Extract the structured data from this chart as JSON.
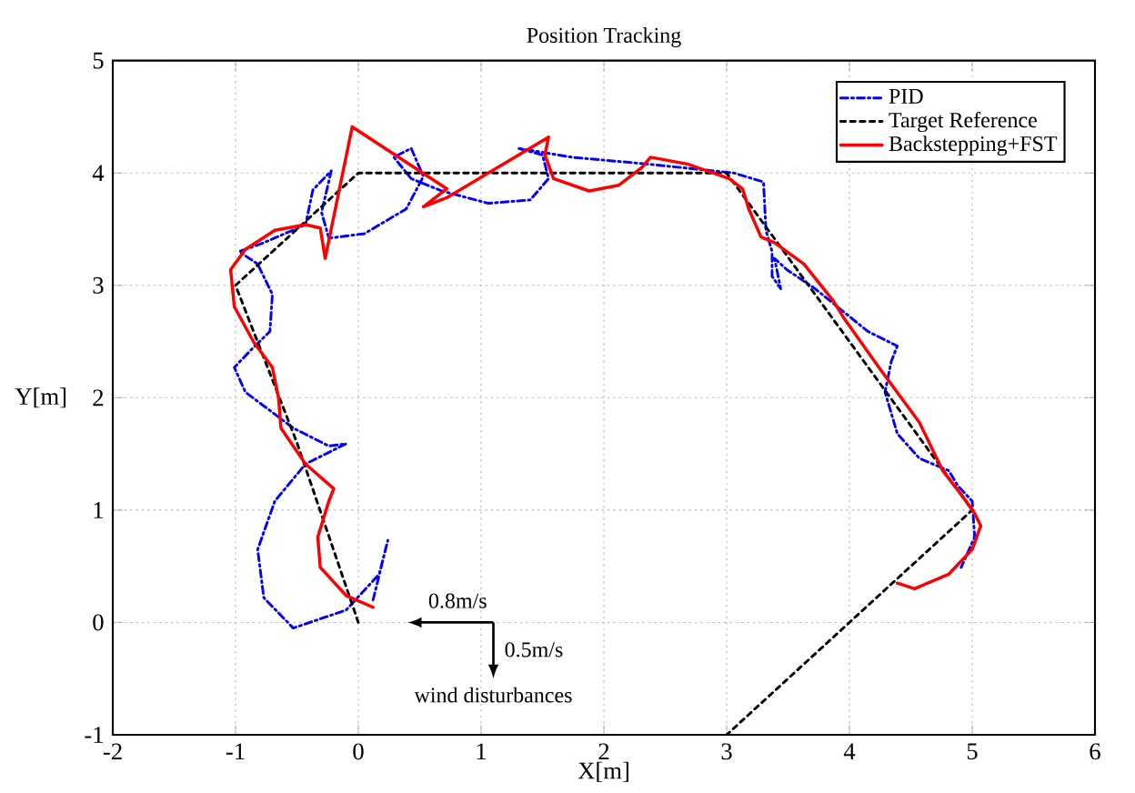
{
  "chart_data": {
    "type": "line",
    "title": "Position Tracking",
    "xlabel": "X[m]",
    "ylabel": "Y[m]",
    "xlim": [
      -2,
      6
    ],
    "ylim": [
      -1,
      5
    ],
    "xticks": [
      -2,
      -1,
      0,
      1,
      2,
      3,
      4,
      5,
      6
    ],
    "yticks": [
      -1,
      0,
      1,
      2,
      3,
      4,
      5
    ],
    "grid": true,
    "legend": "top right",
    "marker": "none",
    "annotations": [
      "0.8m/s",
      "0.5m/s",
      "wind disturbances"
    ],
    "series": [
      {
        "name": "PID",
        "color": "#0000ff",
        "line_style": "dashdot",
        "x": [
          0.12,
          0.24,
          0.17,
          -0.1,
          -0.53,
          -0.77,
          -0.82,
          -0.68,
          -0.43,
          -0.1,
          -0.24,
          -0.53,
          -0.92,
          -1.01,
          -0.87,
          -0.72,
          -0.7,
          -0.82,
          -0.97,
          -0.77,
          -0.43,
          -0.37,
          -0.22,
          -0.3,
          -0.24,
          0.05,
          0.39,
          0.53,
          0.43,
          0.29,
          0.43,
          0.68,
          1.06,
          1.4,
          1.55,
          1.5,
          1.3,
          1.74,
          2.35,
          3.06,
          3.3,
          3.32,
          3.37,
          3.37,
          3.44,
          3.39,
          3.49,
          3.72,
          4.15,
          4.39,
          4.34,
          4.29,
          4.39,
          4.57,
          4.81,
          4.88,
          5.0,
          5.02,
          4.91
        ],
        "values": [
          0.2,
          0.73,
          0.43,
          0.11,
          -0.05,
          0.22,
          0.65,
          1.08,
          1.41,
          1.59,
          1.57,
          1.73,
          2.05,
          2.27,
          2.43,
          2.59,
          2.92,
          3.19,
          3.3,
          3.38,
          3.54,
          3.85,
          4.02,
          3.65,
          3.42,
          3.46,
          3.68,
          3.97,
          4.22,
          4.14,
          3.95,
          3.84,
          3.73,
          3.76,
          3.95,
          4.16,
          4.22,
          4.14,
          4.08,
          4.0,
          3.92,
          3.49,
          3.3,
          3.08,
          2.97,
          3.24,
          3.14,
          2.97,
          2.59,
          2.46,
          2.32,
          2.05,
          1.68,
          1.46,
          1.35,
          1.22,
          1.08,
          0.76,
          0.49
        ]
      },
      {
        "name": "Target Reference",
        "color": "#000000",
        "line_style": "dotted",
        "x": [
          0,
          -0.5,
          -1,
          0,
          3,
          5,
          3
        ],
        "values": [
          0,
          1.6,
          3,
          4,
          4,
          1,
          -1
        ]
      },
      {
        "name": "Backstepping+FST",
        "color": "#ff0000",
        "line_style": "solid",
        "x": [
          0.12,
          -0.1,
          -0.31,
          -0.33,
          -0.24,
          -0.2,
          -0.43,
          -0.63,
          -0.65,
          -0.7,
          -0.85,
          -1.01,
          -1.04,
          -0.92,
          -0.68,
          -0.43,
          -0.31,
          -0.27,
          -0.05,
          0.72,
          0.53,
          0.72,
          1.55,
          1.52,
          1.59,
          1.88,
          2.12,
          2.31,
          2.38,
          2.68,
          3.02,
          3.13,
          3.18,
          3.28,
          3.39,
          3.63,
          3.87,
          3.96,
          4.24,
          4.57,
          4.76,
          4.91,
          5.02,
          5.07,
          5.0,
          4.81,
          4.53,
          4.39
        ],
        "values": [
          0.135,
          0.24,
          0.49,
          0.76,
          1.08,
          1.19,
          1.41,
          1.73,
          2.0,
          2.27,
          2.49,
          2.81,
          3.14,
          3.32,
          3.49,
          3.54,
          3.51,
          3.24,
          4.41,
          3.86,
          3.7,
          3.78,
          4.32,
          4.16,
          3.95,
          3.84,
          3.89,
          4.05,
          4.14,
          4.08,
          3.95,
          3.86,
          3.68,
          3.43,
          3.38,
          3.19,
          2.86,
          2.7,
          2.27,
          1.78,
          1.35,
          1.14,
          0.97,
          0.86,
          0.65,
          0.43,
          0.3,
          0.35
        ]
      }
    ]
  }
}
